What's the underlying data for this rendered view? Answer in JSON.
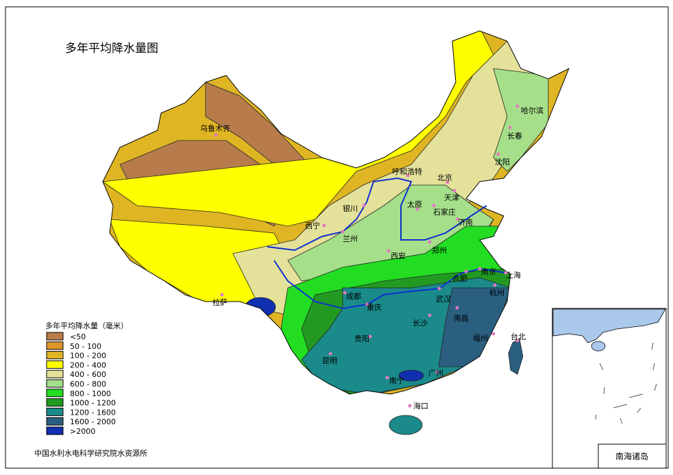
{
  "title": "多年平均降水量图",
  "legend": {
    "title": "多年平均降水量（毫米）",
    "items": [
      {
        "label": "<50",
        "color": "#b87c4c"
      },
      {
        "label": "50 - 100",
        "color": "#e0952a"
      },
      {
        "label": "100 - 200",
        "color": "#dfb524"
      },
      {
        "label": "200 - 400",
        "color": "#ffff00"
      },
      {
        "label": "400 - 600",
        "color": "#e4e29a"
      },
      {
        "label": "600 - 800",
        "color": "#a6df8a"
      },
      {
        "label": "800 - 1000",
        "color": "#22dd22"
      },
      {
        "label": "1000 - 1200",
        "color": "#229a22"
      },
      {
        "label": "1200 - 1600",
        "color": "#1a8a8a"
      },
      {
        "label": "1600 - 2000",
        "color": "#2a5f80"
      },
      {
        "label": ">2000",
        "color": "#1030b0"
      }
    ]
  },
  "cities": [
    {
      "name": "乌鲁木齐"
    },
    {
      "name": "哈尔滨"
    },
    {
      "name": "长春"
    },
    {
      "name": "沈阳"
    },
    {
      "name": "呼和浩特"
    },
    {
      "name": "北京"
    },
    {
      "name": "天津"
    },
    {
      "name": "太原"
    },
    {
      "name": "石家庄"
    },
    {
      "name": "济南"
    },
    {
      "name": "银川"
    },
    {
      "name": "西宁"
    },
    {
      "name": "兰州"
    },
    {
      "name": "西安"
    },
    {
      "name": "郑州"
    },
    {
      "name": "合肥"
    },
    {
      "name": "南京"
    },
    {
      "name": "上海"
    },
    {
      "name": "杭州"
    },
    {
      "name": "武汉"
    },
    {
      "name": "成都"
    },
    {
      "name": "重庆"
    },
    {
      "name": "长沙"
    },
    {
      "name": "南昌"
    },
    {
      "name": "贵阳"
    },
    {
      "name": "福州"
    },
    {
      "name": "昆明"
    },
    {
      "name": "南宁"
    },
    {
      "name": "广州"
    },
    {
      "name": "台北"
    },
    {
      "name": "海口"
    },
    {
      "name": "拉萨"
    }
  ],
  "city_dot_color": "#e07ac0",
  "river_color": "#1030d0",
  "inset": {
    "label": "南海诸岛",
    "land_color": "#a9c8ea"
  },
  "credit": "中国水利水电科学研究院水资源所"
}
